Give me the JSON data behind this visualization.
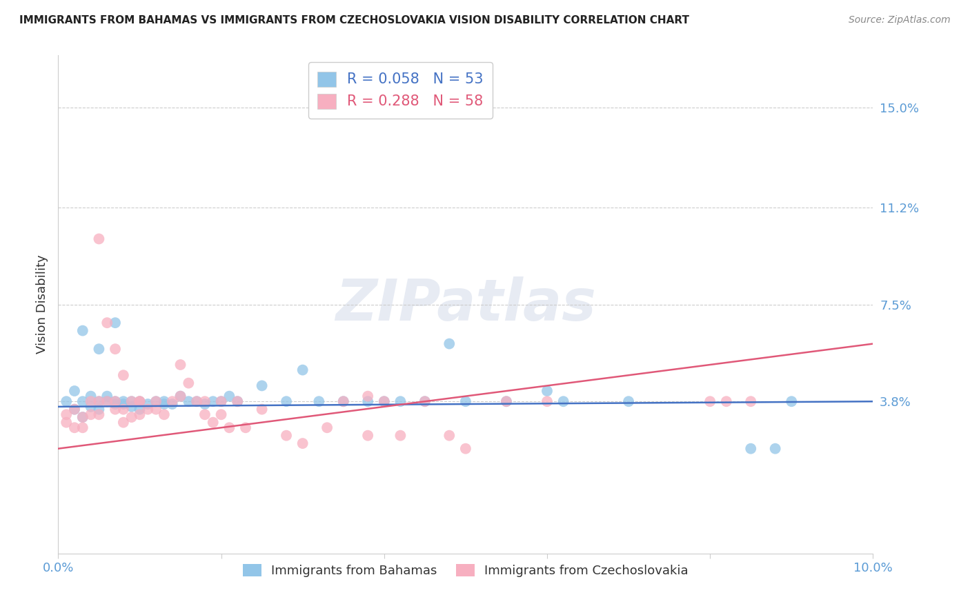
{
  "title": "IMMIGRANTS FROM BAHAMAS VS IMMIGRANTS FROM CZECHOSLOVAKIA VISION DISABILITY CORRELATION CHART",
  "source": "Source: ZipAtlas.com",
  "ylabel": "Vision Disability",
  "xlim": [
    0.0,
    0.1
  ],
  "ylim": [
    -0.02,
    0.17
  ],
  "yticks": [
    0.038,
    0.075,
    0.112,
    0.15
  ],
  "ytick_labels": [
    "3.8%",
    "7.5%",
    "11.2%",
    "15.0%"
  ],
  "xticks": [
    0.0,
    0.02,
    0.04,
    0.06,
    0.08,
    0.1
  ],
  "xtick_labels": [
    "0.0%",
    "",
    "",
    "",
    "",
    "10.0%"
  ],
  "series1_color": "#92c5e8",
  "series2_color": "#f7afc0",
  "trend1_color": "#4472c4",
  "trend2_color": "#e05878",
  "R1": 0.058,
  "N1": 53,
  "R2": 0.288,
  "N2": 58,
  "label1": "Immigrants from Bahamas",
  "label2": "Immigrants from Czechoslovakia",
  "watermark": "ZIPatlas",
  "background_color": "#ffffff",
  "title_color": "#222222",
  "tick_color": "#5b9bd5",
  "series1_x": [
    0.001,
    0.002,
    0.002,
    0.003,
    0.003,
    0.004,
    0.004,
    0.005,
    0.005,
    0.006,
    0.006,
    0.007,
    0.007,
    0.008,
    0.008,
    0.009,
    0.009,
    0.01,
    0.01,
    0.011,
    0.012,
    0.013,
    0.013,
    0.014,
    0.015,
    0.016,
    0.017,
    0.018,
    0.019,
    0.02,
    0.021,
    0.022,
    0.025,
    0.028,
    0.03,
    0.032,
    0.035,
    0.038,
    0.04,
    0.042,
    0.045,
    0.048,
    0.05,
    0.055,
    0.06,
    0.062,
    0.07,
    0.085,
    0.088,
    0.09,
    0.003,
    0.005,
    0.007
  ],
  "series1_y": [
    0.038,
    0.042,
    0.035,
    0.038,
    0.032,
    0.036,
    0.04,
    0.035,
    0.038,
    0.038,
    0.04,
    0.037,
    0.038,
    0.038,
    0.037,
    0.036,
    0.038,
    0.038,
    0.035,
    0.037,
    0.038,
    0.037,
    0.038,
    0.037,
    0.04,
    0.038,
    0.038,
    0.037,
    0.038,
    0.038,
    0.04,
    0.038,
    0.044,
    0.038,
    0.05,
    0.038,
    0.038,
    0.038,
    0.038,
    0.038,
    0.038,
    0.06,
    0.038,
    0.038,
    0.042,
    0.038,
    0.038,
    0.02,
    0.02,
    0.038,
    0.065,
    0.058,
    0.068
  ],
  "series2_x": [
    0.001,
    0.001,
    0.002,
    0.002,
    0.003,
    0.003,
    0.004,
    0.004,
    0.005,
    0.005,
    0.006,
    0.006,
    0.007,
    0.007,
    0.008,
    0.008,
    0.009,
    0.009,
    0.01,
    0.01,
    0.011,
    0.012,
    0.013,
    0.014,
    0.015,
    0.016,
    0.017,
    0.018,
    0.019,
    0.02,
    0.021,
    0.022,
    0.023,
    0.025,
    0.028,
    0.03,
    0.033,
    0.035,
    0.038,
    0.04,
    0.042,
    0.045,
    0.048,
    0.05,
    0.038,
    0.055,
    0.06,
    0.08,
    0.082,
    0.085,
    0.005,
    0.007,
    0.008,
    0.01,
    0.012,
    0.015,
    0.018,
    0.02
  ],
  "series2_y": [
    0.03,
    0.033,
    0.028,
    0.035,
    0.032,
    0.028,
    0.033,
    0.038,
    0.033,
    0.038,
    0.068,
    0.038,
    0.035,
    0.038,
    0.03,
    0.035,
    0.032,
    0.038,
    0.038,
    0.033,
    0.035,
    0.035,
    0.033,
    0.038,
    0.052,
    0.045,
    0.038,
    0.033,
    0.03,
    0.033,
    0.028,
    0.038,
    0.028,
    0.035,
    0.025,
    0.022,
    0.028,
    0.038,
    0.025,
    0.038,
    0.025,
    0.038,
    0.025,
    0.02,
    0.04,
    0.038,
    0.038,
    0.038,
    0.038,
    0.038,
    0.1,
    0.058,
    0.048,
    0.038,
    0.038,
    0.04,
    0.038,
    0.038
  ],
  "trend1_start_y": 0.036,
  "trend1_end_y": 0.038,
  "trend2_start_y": 0.02,
  "trend2_end_y": 0.06
}
